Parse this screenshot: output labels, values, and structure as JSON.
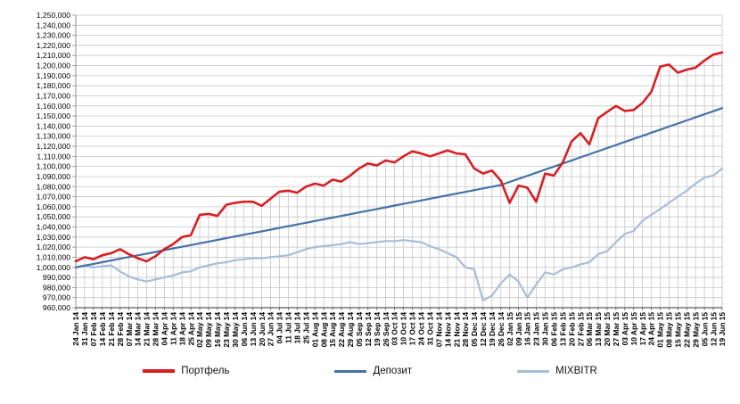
{
  "chart_data": {
    "type": "line",
    "title": "",
    "xlabel": "",
    "ylabel": "",
    "ylim": [
      960000,
      1250000
    ],
    "y_tick_step": 10000,
    "y_ticks": [
      960000,
      970000,
      980000,
      990000,
      1000000,
      1010000,
      1020000,
      1030000,
      1040000,
      1050000,
      1060000,
      1070000,
      1080000,
      1090000,
      1100000,
      1110000,
      1120000,
      1130000,
      1140000,
      1150000,
      1160000,
      1170000,
      1180000,
      1190000,
      1200000,
      1210000,
      1220000,
      1230000,
      1240000,
      1250000
    ],
    "grid": {
      "horizontal": true,
      "vertical_drop_lines": true
    },
    "legend_position": "bottom-center",
    "x_tick_labels": [
      "24 Jan 14",
      "31 Jan 14",
      "07 Feb 14",
      "14 Feb 14",
      "21 Feb 14",
      "28 Feb 14",
      "07 Mar 14",
      "14 Mar 14",
      "21 Mar 14",
      "28 Mar 14",
      "04 Apr 14",
      "11 Apr 14",
      "18 Apr 14",
      "25 Apr 14",
      "02 May 14",
      "09 May 14",
      "16 May 14",
      "23 May 14",
      "30 May 14",
      "06 Jun 14",
      "13 Jun 14",
      "20 Jun 14",
      "27 Jun 14",
      "04 Jul 14",
      "11 Jul 14",
      "18 Jul 14",
      "25 Jul 14",
      "01 Aug 14",
      "08 Aug 14",
      "15 Aug 14",
      "22 Aug 14",
      "29 Aug 14",
      "05 Sep 14",
      "12 Sep 14",
      "19 Sep 14",
      "26 Sep 14",
      "03 Oct 14",
      "10 Oct 14",
      "17 Oct 14",
      "24 Oct 14",
      "31 Oct 14",
      "07 Nov 14",
      "14 Nov 14",
      "21 Nov 14",
      "28 Nov 14",
      "05 Dec 14",
      "12 Dec 14",
      "19 Dec 14",
      "26 Dec 14",
      "02 Jan 15",
      "09 Jan 15",
      "16 Jan 15",
      "23 Jan 15",
      "30 Jan 15",
      "06 Feb 15",
      "13 Feb 15",
      "20 Feb 15",
      "27 Feb 15",
      "06 Mar 15",
      "13 Mar 15",
      "20 Mar 15",
      "27 Mar 15",
      "03 Apr 15",
      "10 Apr 15",
      "17 Apr 15",
      "24 Apr 15",
      "01 May 15",
      "08 May 15",
      "15 May 15",
      "22 May 15",
      "29 May 15",
      "05 Jun 15",
      "12 Jun 15",
      "19 Jun 15"
    ],
    "series": [
      {
        "name": "Портфель",
        "color": "#d81e23",
        "line_width": 2.6,
        "values": [
          1006000,
          1010000,
          1008000,
          1012000,
          1014000,
          1018000,
          1013000,
          1009000,
          1006000,
          1011000,
          1018000,
          1023000,
          1030000,
          1032000,
          1052000,
          1053000,
          1051000,
          1062000,
          1064000,
          1065000,
          1065000,
          1061000,
          1068000,
          1075000,
          1076000,
          1074000,
          1080000,
          1083000,
          1081000,
          1087000,
          1085000,
          1091000,
          1098000,
          1103000,
          1101000,
          1106000,
          1104000,
          1110000,
          1115000,
          1113000,
          1110000,
          1113000,
          1116000,
          1113000,
          1112000,
          1098000,
          1093000,
          1096000,
          1086000,
          1064000,
          1081000,
          1079000,
          1065000,
          1093000,
          1091000,
          1104000,
          1125000,
          1133000,
          1122000,
          1148000,
          1154000,
          1160000,
          1155000,
          1156000,
          1163000,
          1174000,
          1199000,
          1201000,
          1193000,
          1196000,
          1198000,
          1205000,
          1211000,
          1213000
        ]
      },
      {
        "name": "Депозит",
        "color": "#4472a8",
        "line_width": 2.2,
        "values": [
          1000000,
          1001700,
          1003400,
          1005100,
          1006800,
          1008500,
          1010200,
          1011900,
          1013600,
          1015300,
          1017000,
          1018700,
          1020400,
          1022100,
          1023800,
          1025500,
          1027200,
          1028900,
          1030600,
          1032300,
          1034000,
          1035700,
          1037400,
          1039100,
          1040800,
          1042500,
          1044200,
          1045900,
          1047600,
          1049300,
          1051000,
          1052700,
          1054400,
          1056100,
          1057800,
          1059500,
          1061200,
          1062900,
          1064600,
          1066300,
          1068000,
          1069700,
          1071400,
          1073100,
          1074800,
          1076500,
          1078200,
          1079900,
          1081600,
          1084650,
          1087700,
          1090750,
          1093800,
          1096850,
          1099900,
          1102950,
          1106000,
          1109050,
          1112100,
          1115150,
          1118200,
          1121250,
          1124300,
          1127350,
          1130400,
          1133450,
          1136500,
          1139550,
          1142600,
          1145650,
          1148700,
          1151750,
          1154800,
          1157850
        ]
      },
      {
        "name": "MIXBITR",
        "color": "#a9bdd8",
        "line_width": 2.2,
        "values": [
          1000000,
          1002000,
          1000000,
          1001000,
          1002000,
          996000,
          991000,
          988000,
          986000,
          988000,
          990000,
          992000,
          995000,
          996000,
          1000000,
          1002000,
          1004000,
          1005000,
          1007000,
          1008000,
          1009000,
          1009000,
          1010000,
          1011000,
          1012000,
          1015000,
          1018000,
          1020000,
          1021000,
          1022000,
          1023000,
          1025000,
          1023000,
          1024000,
          1025000,
          1026000,
          1026000,
          1027000,
          1026000,
          1025000,
          1021000,
          1018000,
          1014000,
          1010000,
          1000000,
          998000,
          967000,
          972000,
          984000,
          993000,
          986000,
          970000,
          983000,
          995000,
          993000,
          998000,
          1000000,
          1003000,
          1005000,
          1013000,
          1016000,
          1025000,
          1033000,
          1036000,
          1046000,
          1052000,
          1058000,
          1064000,
          1070000,
          1076000,
          1083000,
          1089000,
          1091000,
          1098000
        ]
      }
    ]
  },
  "legend": {
    "items": [
      {
        "label": "Портфель"
      },
      {
        "label": "Депозит"
      },
      {
        "label": "MIXBITR"
      }
    ]
  }
}
